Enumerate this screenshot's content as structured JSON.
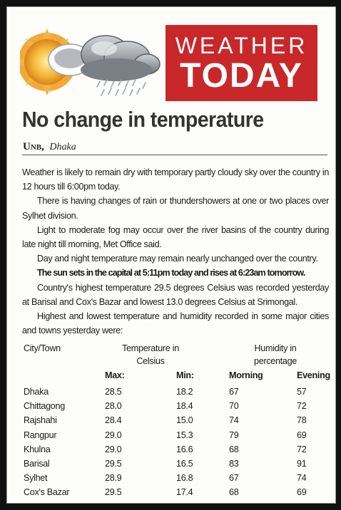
{
  "banner": {
    "line1": "WEATHER",
    "line2": "TODAY",
    "accent_color": "#c8282a",
    "art_icons": [
      "sun-icon",
      "cloud-icon",
      "rain-icon"
    ]
  },
  "article": {
    "headline": "No change in temperature",
    "agency": "Unb,",
    "city": "Dhaka",
    "paragraphs": [
      "Weather is likely to remain dry with temporary partly cloudy sky over the country in 12 hours till 6:00pm today.",
      "There is having changes of rain or thundershowers at one or two places over Sylhet division.",
      "Light to moderate fog may occur over the river basins of the country during late night till morning, Met Office said.",
      "Day and night temperature may remain nearly unchanged over the country.",
      "The sun sets in the capital at 5:11pm today and rises at 6:23am tomorrow.",
      "Country's highest temperature 29.5 degrees Celsius was recorded yesterday at Barisal and Cox's Bazar and lowest 13.0 degrees Celsius at Srimongal.",
      "Highest and lowest temperature and humidity recorded in some major cities and towns yesterday were:"
    ]
  },
  "table": {
    "headers": {
      "city": "City/Town",
      "temp_line1": "Temperature in",
      "temp_line2": "Celsius",
      "hum_line1": "Humidity in",
      "hum_line2": "percentage"
    },
    "subheaders": [
      "Max:",
      "Min:",
      "Morning",
      "Evening"
    ],
    "rows": [
      [
        "Dhaka",
        "28.5",
        "18.2",
        "67",
        "57"
      ],
      [
        "Chittagong",
        "28.0",
        "18.4",
        "70",
        "72"
      ],
      [
        "Rajshahi",
        "28.4",
        "15.0",
        "74",
        "78"
      ],
      [
        "Rangpur",
        "29.0",
        "15.3",
        "79",
        "69"
      ],
      [
        "Khulna",
        "29.0",
        "16.6",
        "68",
        "72"
      ],
      [
        "Barisal",
        "29.5",
        "16.5",
        "83",
        "91"
      ],
      [
        "Sylhet",
        "28.9",
        "16.8",
        "67",
        "74"
      ],
      [
        "Cox's Bazar",
        "29.5",
        "17.4",
        "68",
        "69"
      ]
    ]
  }
}
